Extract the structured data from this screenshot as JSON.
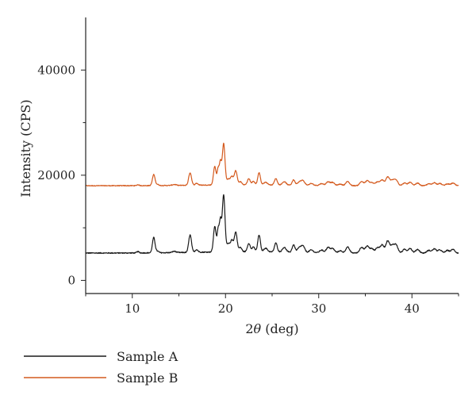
{
  "chart_data": {
    "type": "line",
    "title": "",
    "xlabel_prefix": "2",
    "xlabel_var": "θ",
    "xlabel_suffix": " (deg)",
    "ylabel": "Intensity (CPS)",
    "xlim": [
      5,
      45
    ],
    "ylim": [
      -2500,
      50000
    ],
    "x_ticks": [
      10,
      20,
      30,
      40
    ],
    "y_ticks": [
      0,
      20000,
      40000
    ],
    "x_tick_labels": [
      "10",
      "20",
      "30",
      "40"
    ],
    "y_tick_labels": [
      "0",
      "20000",
      "40000"
    ],
    "grid": false,
    "legend_position": "bottom-left-outside",
    "baseline_a": 5200,
    "baseline_b": 18000,
    "peaks": [
      [
        10.6,
        250,
        0.12
      ],
      [
        12.3,
        2900,
        0.14
      ],
      [
        12.7,
        300,
        0.15
      ],
      [
        14.5,
        250,
        0.2
      ],
      [
        16.2,
        3300,
        0.15
      ],
      [
        16.9,
        500,
        0.15
      ],
      [
        18.85,
        4900,
        0.14
      ],
      [
        19.2,
        3800,
        0.1
      ],
      [
        19.45,
        6000,
        0.12
      ],
      [
        19.8,
        10800,
        0.14
      ],
      [
        20.3,
        1500,
        0.2
      ],
      [
        20.7,
        2000,
        0.15
      ],
      [
        21.1,
        3700,
        0.15
      ],
      [
        21.6,
        800,
        0.15
      ],
      [
        22.5,
        1600,
        0.15
      ],
      [
        23.0,
        900,
        0.15
      ],
      [
        23.6,
        3200,
        0.14
      ],
      [
        24.3,
        700,
        0.2
      ],
      [
        25.4,
        1700,
        0.15
      ],
      [
        26.3,
        900,
        0.2
      ],
      [
        27.3,
        1400,
        0.15
      ],
      [
        27.9,
        800,
        0.2
      ],
      [
        28.3,
        1200,
        0.2
      ],
      [
        29.2,
        500,
        0.2
      ],
      [
        30.3,
        500,
        0.2
      ],
      [
        31.0,
        1000,
        0.2
      ],
      [
        31.5,
        800,
        0.2
      ],
      [
        32.3,
        400,
        0.2
      ],
      [
        33.1,
        1100,
        0.2
      ],
      [
        34.6,
        1100,
        0.2
      ],
      [
        35.2,
        1300,
        0.2
      ],
      [
        35.7,
        800,
        0.2
      ],
      [
        36.3,
        1000,
        0.2
      ],
      [
        36.8,
        1500,
        0.2
      ],
      [
        37.4,
        2300,
        0.2
      ],
      [
        37.9,
        1300,
        0.2
      ],
      [
        38.3,
        1500,
        0.2
      ],
      [
        39.2,
        700,
        0.2
      ],
      [
        39.8,
        900,
        0.2
      ],
      [
        40.6,
        700,
        0.2
      ],
      [
        41.8,
        500,
        0.2
      ],
      [
        42.4,
        800,
        0.2
      ],
      [
        43.0,
        600,
        0.2
      ],
      [
        43.8,
        500,
        0.2
      ],
      [
        44.4,
        700,
        0.2
      ]
    ],
    "series": [
      {
        "name": "Sample A",
        "color": "#1a1a1a",
        "scale": 1.0
      },
      {
        "name": "Sample B",
        "color": "#d45a1e",
        "scale": 0.72
      }
    ]
  }
}
